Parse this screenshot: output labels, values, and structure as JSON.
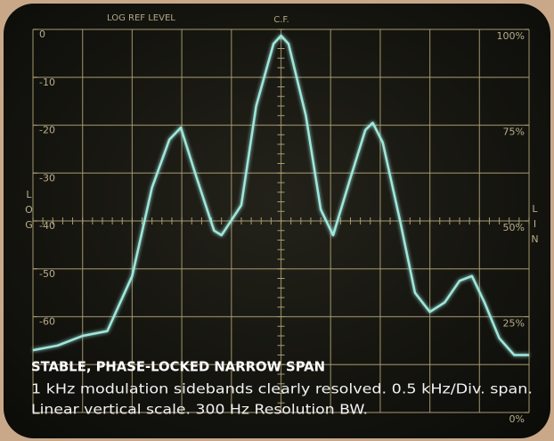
{
  "chart_data": {
    "type": "line",
    "top_left_label": "LOG REF LEVEL",
    "top_center_label": "C.F.",
    "left_axis_label": "LOG",
    "right_axis_label": "LIN",
    "caption_title": "STABLE, PHASE-LOCKED NARROW SPAN",
    "caption_lines": [
      "1 kHz modulation sidebands clearly resolved. 0.5 kHz/Div. span.",
      "Linear vertical scale. 300 Hz Resolution BW."
    ],
    "xlim": [
      0,
      10
    ],
    "ylim": [
      -80,
      0
    ],
    "yticks": [
      0,
      -10,
      -20,
      -30,
      -40,
      -50,
      -60
    ],
    "y2lim": [
      0,
      100
    ],
    "y2ticks": [
      {
        "value": 100,
        "label": "100%"
      },
      {
        "value": 75,
        "label": "75%"
      },
      {
        "value": 50,
        "label": "50%"
      },
      {
        "value": 25,
        "label": "25%"
      },
      {
        "value": 0,
        "label": "0%"
      }
    ],
    "grid": true,
    "series": [
      {
        "color": "#9fe8dc",
        "x": [
          0,
          0.5,
          1,
          1.5,
          2,
          2.4,
          2.75,
          2.98,
          3.3,
          3.65,
          3.8,
          4.2,
          4.5,
          4.85,
          5,
          5.15,
          5.5,
          5.8,
          6.05,
          6.4,
          6.7,
          6.85,
          7.05,
          7.4,
          7.7,
          8,
          8.3,
          8.6,
          8.85,
          9.1,
          9.4,
          9.7,
          10
        ],
        "values": [
          -67,
          -66,
          -64,
          -63,
          -51.5,
          -33,
          -23,
          -20.5,
          -31,
          -42,
          -43,
          -36.7,
          -16,
          -3,
          -1.3,
          -3,
          -18,
          -37.6,
          -43,
          -31,
          -21,
          -19.5,
          -23.6,
          -40,
          -55,
          -59,
          -57,
          -52.5,
          -51.5,
          -57,
          -64.5,
          -68,
          -68
        ]
      }
    ]
  }
}
